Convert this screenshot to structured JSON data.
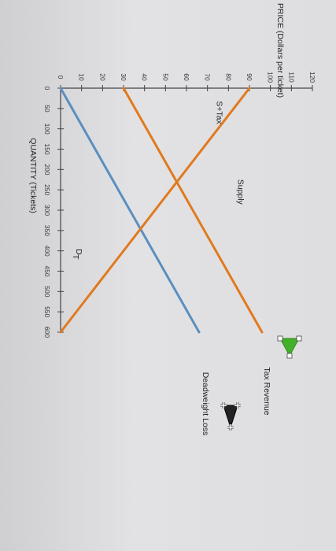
{
  "chart_data": {
    "type": "line",
    "orientation": "rotated-90-clockwise",
    "xlabel": "QUANTITY (Tickets)",
    "ylabel": "PRICE (Dollars per ticket)",
    "xlim": [
      0,
      600
    ],
    "ylim": [
      0,
      120
    ],
    "x_ticks": [
      0,
      50,
      100,
      150,
      200,
      250,
      300,
      350,
      400,
      450,
      500,
      550,
      600
    ],
    "y_ticks": [
      0,
      10,
      20,
      30,
      40,
      50,
      60,
      70,
      80,
      90,
      100,
      110,
      120
    ],
    "x_tick_labels": [
      "0",
      "50",
      "100",
      "150",
      "200",
      "250",
      "300",
      "350",
      "400",
      "450",
      "500",
      "550",
      "600"
    ],
    "y_tick_labels": [
      "0",
      "10",
      "20",
      "30",
      "40",
      "50",
      "60",
      "70",
      "80",
      "90",
      "100",
      "110",
      "120"
    ],
    "series": [
      {
        "name": "Supply",
        "color": "#5b8fbf",
        "x": [
          0,
          600
        ],
        "y": [
          0,
          66
        ]
      },
      {
        "name": "S+Tax",
        "color": "#e07a1f",
        "x": [
          0,
          600
        ],
        "y": [
          30,
          96
        ]
      },
      {
        "name": "D",
        "name_subscript": "T",
        "color": "#e07a1f",
        "x": [
          0,
          600
        ],
        "y": [
          90,
          0
        ]
      }
    ],
    "curve_labels": {
      "supply": "Supply",
      "stax": "S+Tax",
      "demand_main": "D",
      "demand_sub": "T"
    },
    "legend": {
      "placement": "right",
      "items": [
        {
          "label": "Tax Revenue",
          "color": "#43b02a",
          "marker": "green-triangle-icon"
        },
        {
          "label": "Deadweight Loss",
          "color": "#222222",
          "marker": "black-triangle-icon"
        }
      ]
    },
    "grid": false
  }
}
